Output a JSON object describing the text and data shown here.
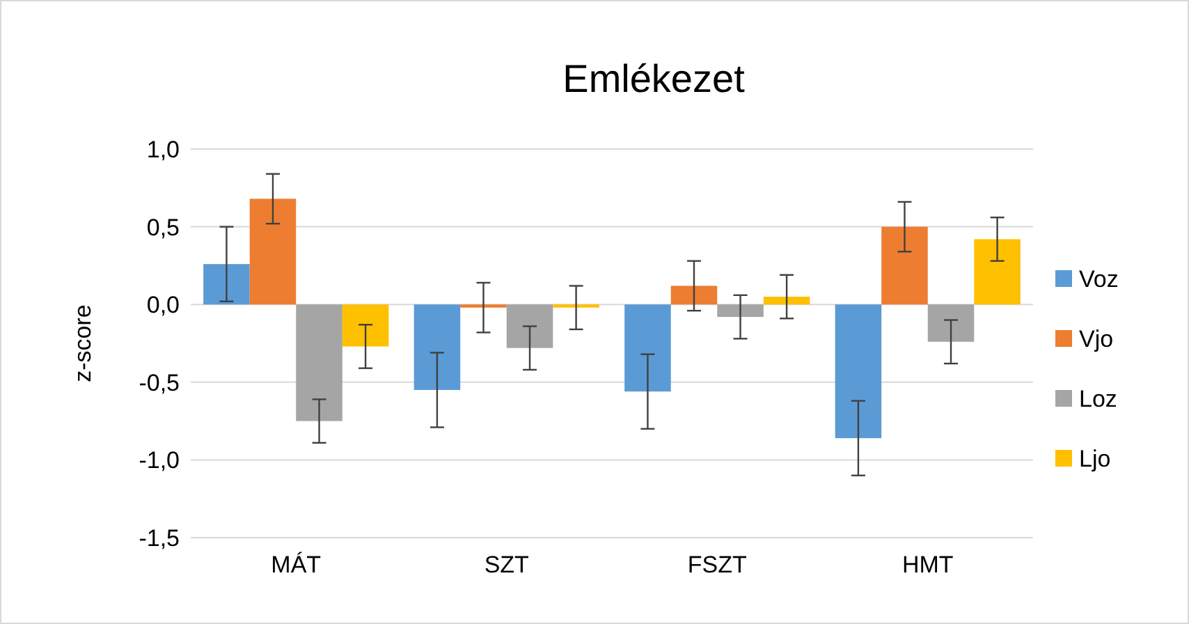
{
  "chart_data": {
    "type": "bar",
    "title": "Emlékezet",
    "ylabel": "z-score",
    "categories": [
      "MÁT",
      "SZT",
      "FSZT",
      "HMT"
    ],
    "series": [
      {
        "name": "Voz",
        "color": "#5b9bd5",
        "values": [
          0.26,
          -0.55,
          -0.56,
          -0.86
        ],
        "errors": [
          0.24,
          0.24,
          0.24,
          0.24
        ]
      },
      {
        "name": "Vjo",
        "color": "#ed7d31",
        "values": [
          0.68,
          -0.02,
          0.12,
          0.5
        ],
        "errors": [
          0.16,
          0.16,
          0.16,
          0.16
        ]
      },
      {
        "name": "Loz",
        "color": "#a5a5a5",
        "values": [
          -0.75,
          -0.28,
          -0.08,
          -0.24
        ],
        "errors": [
          0.14,
          0.14,
          0.14,
          0.14
        ]
      },
      {
        "name": "Ljo",
        "color": "#ffc000",
        "values": [
          -0.27,
          -0.02,
          0.05,
          0.42
        ],
        "errors": [
          0.14,
          0.14,
          0.14,
          0.14
        ]
      }
    ],
    "ylim": [
      -1.5,
      1
    ],
    "yticks": [
      {
        "value": -1.5,
        "label": "-1,5"
      },
      {
        "value": -1,
        "label": "-1,0"
      },
      {
        "value": -0.5,
        "label": "-0,5"
      },
      {
        "value": 0,
        "label": "0,0"
      },
      {
        "value": 0.5,
        "label": "0,5"
      },
      {
        "value": 1,
        "label": "1,0"
      }
    ],
    "grid": "y",
    "legend": "right"
  }
}
